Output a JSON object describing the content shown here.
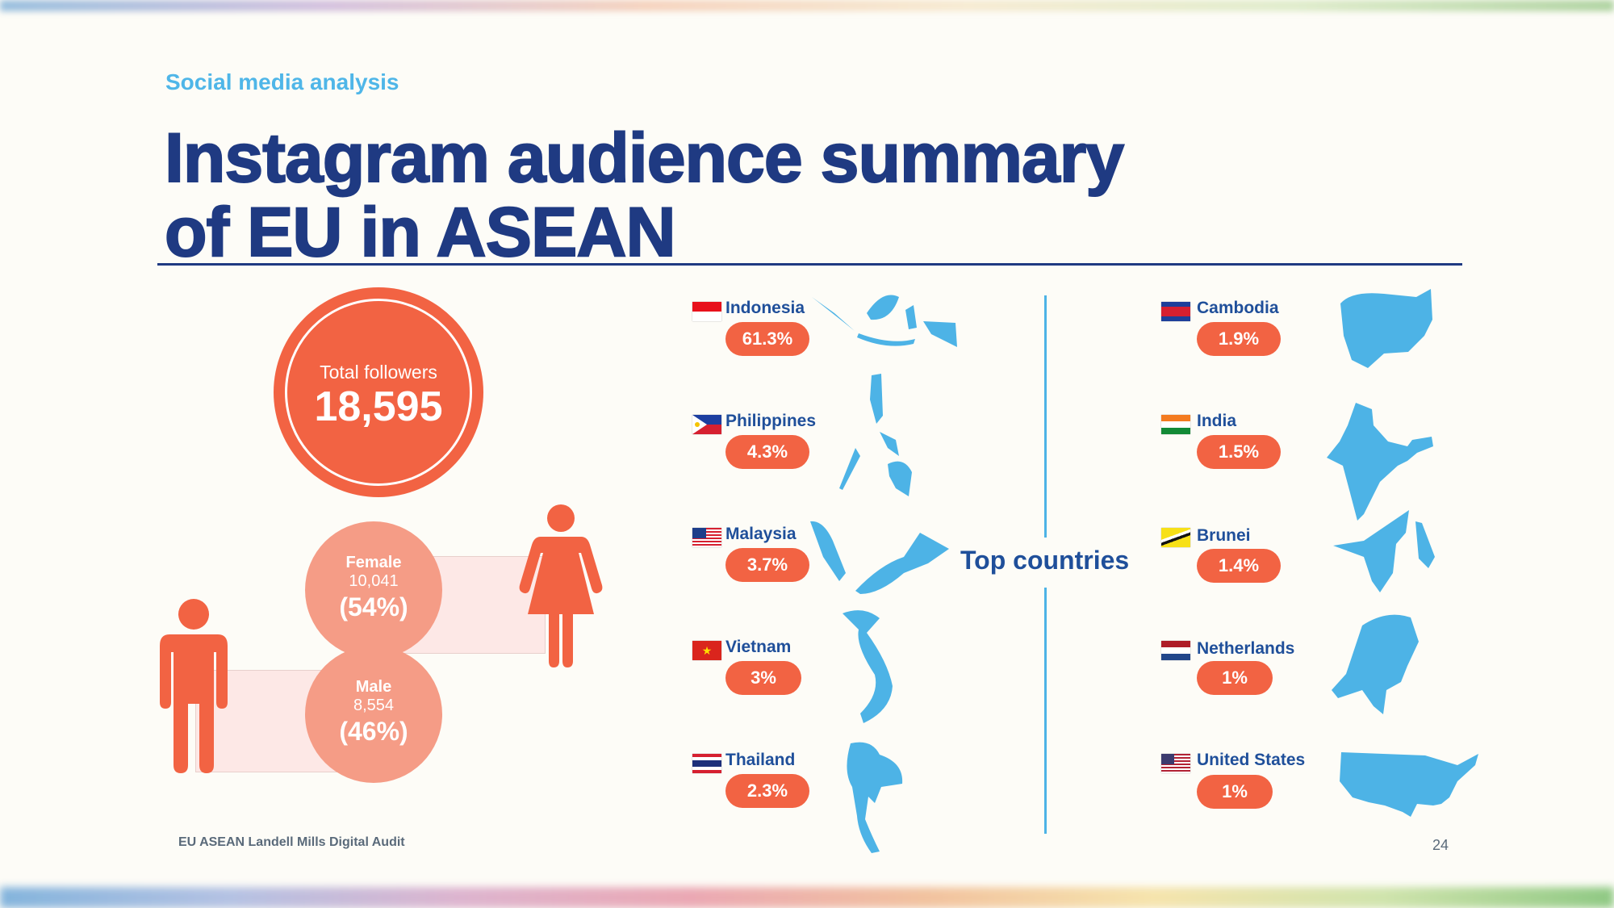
{
  "header": {
    "section": "Social media analysis",
    "title_line1": "Instagram audience summary",
    "title_line2": "of EU in ASEAN"
  },
  "followers": {
    "label": "Total followers",
    "value": "18,595"
  },
  "gender": {
    "female": {
      "label": "Female",
      "count": "10,041",
      "percent": "(54%)"
    },
    "male": {
      "label": "Male",
      "count": "8,554",
      "percent": "(46%)"
    }
  },
  "top_countries_label": "Top countries",
  "countries_left": [
    {
      "name": "Indonesia",
      "percent": "61.3%"
    },
    {
      "name": "Philippines",
      "percent": "4.3%"
    },
    {
      "name": "Malaysia",
      "percent": "3.7%"
    },
    {
      "name": "Vietnam",
      "percent": "3%"
    },
    {
      "name": "Thailand",
      "percent": "2.3%"
    }
  ],
  "countries_right": [
    {
      "name": "Cambodia",
      "percent": "1.9%"
    },
    {
      "name": "India",
      "percent": "1.5%"
    },
    {
      "name": "Brunei",
      "percent": "1.4%"
    },
    {
      "name": "Netherlands",
      "percent": "1%"
    },
    {
      "name": "United States",
      "percent": "1%"
    }
  ],
  "footer": {
    "source": "EU ASEAN Landell Mills Digital Audit",
    "page": "24"
  },
  "colors": {
    "accent": "#f26343",
    "navy": "#1f3a82",
    "map_blue": "#4db3e6"
  }
}
